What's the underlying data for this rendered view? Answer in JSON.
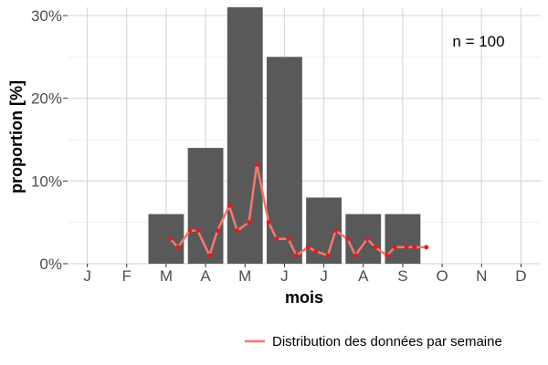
{
  "chart_data": {
    "type": "bar",
    "categories": [
      "J",
      "F",
      "M",
      "A",
      "M",
      "J",
      "J",
      "A",
      "S",
      "O",
      "N",
      "D"
    ],
    "values": [
      0,
      0,
      6,
      14,
      31,
      25,
      8,
      6,
      6,
      0,
      0,
      0
    ],
    "xlabel": "mois",
    "ylabel": "proportion [%]",
    "yticks": [
      0,
      10,
      20,
      30
    ],
    "ytick_labels": [
      "0%",
      "10%",
      "20%",
      "30%"
    ],
    "ylim": [
      0,
      31
    ],
    "grid": true,
    "bar_color": "#595959",
    "annotation": "n = 100",
    "line_series": {
      "name": "Distribution des données par semaine",
      "color": "#f8766d",
      "point_color": "#e31a1c",
      "x": [
        3.1,
        3.3,
        3.6,
        3.8,
        4.1,
        4.3,
        4.6,
        4.8,
        5.1,
        5.3,
        5.6,
        5.8,
        6.1,
        6.3,
        6.6,
        6.8,
        7.1,
        7.3,
        7.6,
        7.8,
        8.1,
        8.3,
        8.6,
        8.8,
        9.1,
        9.3,
        9.6
      ],
      "y": [
        3,
        2,
        4,
        4,
        1,
        4,
        7,
        4,
        5,
        12,
        5,
        3,
        3,
        1,
        2,
        1.5,
        1,
        4,
        3,
        1,
        3,
        2,
        1,
        2,
        2,
        2,
        2
      ]
    },
    "legend_position": "bottom-right"
  }
}
